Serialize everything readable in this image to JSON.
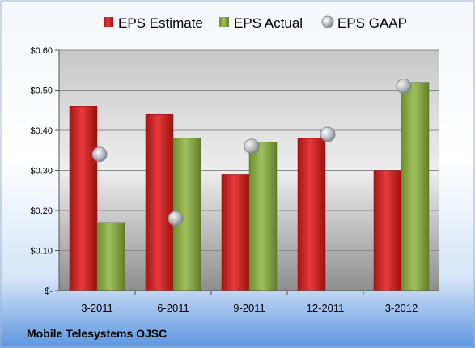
{
  "footer_text": "Mobile Telesystems OJSC",
  "colors": {
    "estimate": "#d42a2a",
    "actual": "#8cb04a",
    "gaap": "#b8bcc4"
  },
  "chart_data": {
    "type": "bar",
    "categories": [
      "3-2011",
      "6-2011",
      "9-2011",
      "12-2011",
      "3-2012"
    ],
    "series": [
      {
        "name": "EPS Estimate",
        "type": "bar",
        "values": [
          0.46,
          0.44,
          0.29,
          0.38,
          0.3
        ]
      },
      {
        "name": "EPS Actual",
        "type": "bar",
        "values": [
          0.17,
          0.38,
          0.37,
          null,
          0.52
        ]
      },
      {
        "name": "EPS GAAP",
        "type": "scatter",
        "values": [
          0.34,
          0.18,
          0.36,
          0.39,
          0.51
        ]
      }
    ],
    "ylim": [
      0,
      0.6
    ],
    "yticks": [
      "$-",
      "$0.10",
      "$0.20",
      "$0.30",
      "$0.40",
      "$0.50",
      "$0.60"
    ],
    "ytick_values": [
      0,
      0.1,
      0.2,
      0.3,
      0.4,
      0.5,
      0.6
    ],
    "grid": true,
    "legend": "top"
  }
}
